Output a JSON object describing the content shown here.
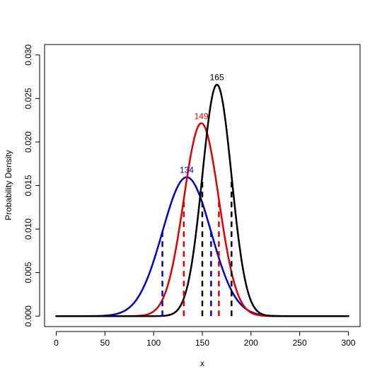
{
  "chart_data": {
    "type": "line",
    "xlabel": "x",
    "ylabel": "Probability Density",
    "xlim": [
      -12,
      312
    ],
    "ylim": [
      -0.0012,
      0.0312
    ],
    "grid": false,
    "legend": "none",
    "x_ticks": [
      0,
      50,
      100,
      150,
      200,
      250,
      300
    ],
    "x_tick_labels": [
      "0",
      "50",
      "100",
      "150",
      "200",
      "250",
      "300"
    ],
    "y_ticks": [
      0.0,
      0.005,
      0.01,
      0.015,
      0.02,
      0.025,
      0.03
    ],
    "y_tick_labels": [
      "0.000",
      "0.005",
      "0.010",
      "0.015",
      "0.020",
      "0.025",
      "0.030"
    ],
    "series": [
      {
        "color": "#0000c8",
        "mean": 134,
        "sd": 25,
        "x_range": [
          0,
          300
        ],
        "peak_label": "134",
        "vertical_dashed_x": [
          109,
          159
        ]
      },
      {
        "color": "#e00000",
        "mean": 149,
        "sd": 18,
        "x_range": [
          0,
          300
        ],
        "peak_label": "149",
        "vertical_dashed_x": [
          131,
          167
        ]
      },
      {
        "color": "#000000",
        "mean": 165,
        "sd": 15,
        "x_range": [
          0,
          300
        ],
        "peak_label": "165",
        "vertical_dashed_x": [
          150,
          180
        ]
      }
    ]
  }
}
